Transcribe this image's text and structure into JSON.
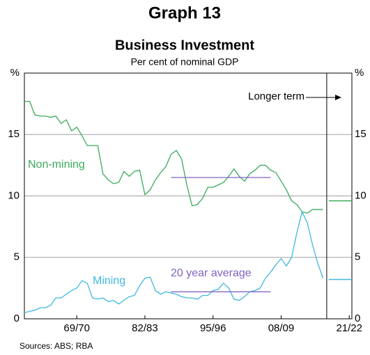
{
  "chart_data": {
    "type": "line",
    "title": "Graph 13",
    "subtitle": "Business Investment",
    "y_label": "Per cent of nominal GDP",
    "source": "Sources:   ABS; RBA",
    "x": [
      1959,
      1960,
      1961,
      1962,
      1963,
      1964,
      1965,
      1966,
      1967,
      1968,
      1969,
      1970,
      1971,
      1972,
      1973,
      1974,
      1975,
      1976,
      1977,
      1978,
      1979,
      1980,
      1981,
      1982,
      1983,
      1984,
      1985,
      1986,
      1987,
      1988,
      1989,
      1990,
      1991,
      1992,
      1993,
      1994,
      1995,
      1996,
      1997,
      1998,
      1999,
      2000,
      2001,
      2002,
      2003,
      2004,
      2005,
      2006,
      2007,
      2008,
      2009,
      2010,
      2011,
      2012,
      2013,
      2014,
      2015,
      2016
    ],
    "series": [
      {
        "name": "Non-mining",
        "color": "#3aaa5c",
        "values": [
          17.7,
          17.7,
          16.6,
          16.5,
          16.5,
          16.4,
          16.5,
          15.9,
          16.2,
          15.3,
          15.6,
          14.9,
          14.1,
          14.1,
          14.1,
          11.8,
          11.3,
          11.0,
          11.1,
          12.0,
          11.6,
          12.0,
          12.1,
          10.1,
          10.5,
          11.3,
          11.9,
          12.4,
          13.4,
          13.7,
          13.0,
          10.9,
          9.2,
          9.3,
          9.8,
          10.7,
          10.7,
          10.9,
          11.1,
          11.6,
          12.2,
          11.6,
          11.2,
          11.8,
          12.1,
          12.5,
          12.5,
          12.1,
          11.9,
          11.2,
          10.5,
          9.6,
          9.3,
          8.7,
          8.6,
          8.9,
          8.9,
          8.9
        ]
      },
      {
        "name": "Mining",
        "color": "#3fb8e0",
        "values": [
          0.5,
          0.6,
          0.7,
          0.9,
          0.9,
          1.1,
          1.7,
          1.7,
          2.0,
          2.3,
          2.5,
          3.1,
          2.9,
          1.7,
          1.6,
          1.7,
          1.4,
          1.5,
          1.2,
          1.5,
          1.8,
          1.9,
          2.7,
          3.3,
          3.4,
          2.3,
          2.0,
          2.2,
          2.1,
          2.0,
          1.8,
          1.7,
          1.7,
          1.6,
          1.9,
          1.9,
          2.3,
          2.4,
          2.9,
          2.5,
          1.6,
          1.5,
          1.8,
          2.2,
          2.3,
          2.5,
          3.3,
          3.8,
          4.4,
          4.9,
          4.3,
          5.0,
          7.0,
          8.7,
          7.8,
          6.0,
          4.5,
          3.3
        ]
      }
    ],
    "average_label": "20 year average",
    "average_color": "#8064c0",
    "averages": [
      {
        "value": 11.5,
        "x": [
          1987,
          2006
        ]
      },
      {
        "value": 2.2,
        "x": [
          1987,
          2006
        ]
      }
    ],
    "divider_x": 2016.7,
    "longer_term": {
      "label": "Longer term",
      "x": [
        2017.1,
        2021.5
      ],
      "values": [
        9.6,
        3.2
      ]
    },
    "xlim": [
      1959,
      2021.5
    ],
    "xticks": [
      {
        "value": 1969,
        "label": "69/70"
      },
      {
        "value": 1982,
        "label": "82/83"
      },
      {
        "value": 1995,
        "label": "95/96"
      },
      {
        "value": 2008,
        "label": "08/09"
      },
      {
        "value": 2021,
        "label": "21/22"
      }
    ],
    "ylim": [
      0,
      20
    ],
    "yticks": [
      0,
      5,
      10,
      15,
      {
        "value": 20,
        "label": "%"
      }
    ],
    "grid": true
  }
}
